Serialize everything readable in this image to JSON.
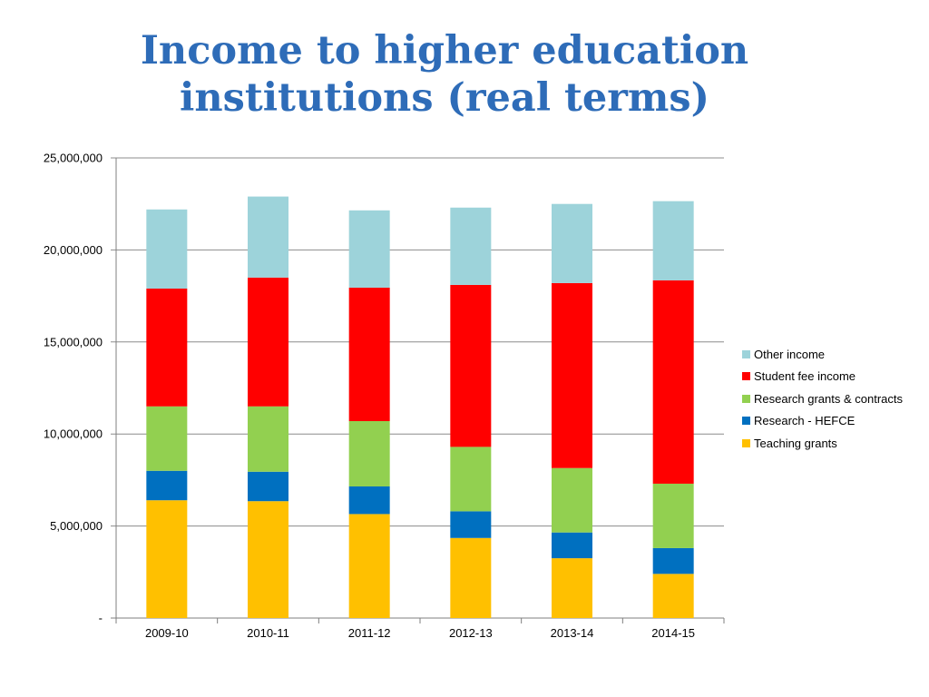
{
  "slide": {
    "title_line1": "Income to higher education",
    "title_line2": "institutions (real terms)"
  },
  "chart_data": {
    "type": "bar",
    "stacked": true,
    "title": "",
    "xlabel": "",
    "ylabel": "",
    "categories": [
      "2009-10",
      "2010-11",
      "2011-12",
      "2012-13",
      "2013-14",
      "2014-15"
    ],
    "ylim": [
      0,
      25000000
    ],
    "yticks": [
      0,
      5000000,
      10000000,
      15000000,
      20000000,
      25000000
    ],
    "ytick_labels": [
      "-",
      "5,000,000",
      "10,000,000",
      "15,000,000",
      "20,000,000",
      "25,000,000"
    ],
    "grid": true,
    "legend_position": "right",
    "series": [
      {
        "name": "Teaching grants",
        "color": "#FFC000",
        "values": [
          6400000,
          6350000,
          5650000,
          4350000,
          3250000,
          2400000
        ]
      },
      {
        "name": "Research - HEFCE",
        "color": "#0070C0",
        "values": [
          1600000,
          1600000,
          1500000,
          1450000,
          1400000,
          1400000
        ]
      },
      {
        "name": "Research grants & contracts",
        "color": "#92D050",
        "values": [
          3500000,
          3550000,
          3550000,
          3500000,
          3500000,
          3500000
        ]
      },
      {
        "name": "Student fee income",
        "color": "#FF0000",
        "values": [
          6400000,
          7000000,
          7250000,
          8800000,
          10050000,
          11050000
        ]
      },
      {
        "name": "Other income",
        "color": "#9DD3DA",
        "values": [
          4300000,
          4400000,
          4200000,
          4200000,
          4300000,
          4300000
        ]
      }
    ],
    "legend_order": [
      "Other income",
      "Student fee income",
      "Research grants & contracts",
      "Research - HEFCE",
      "Teaching grants"
    ]
  }
}
